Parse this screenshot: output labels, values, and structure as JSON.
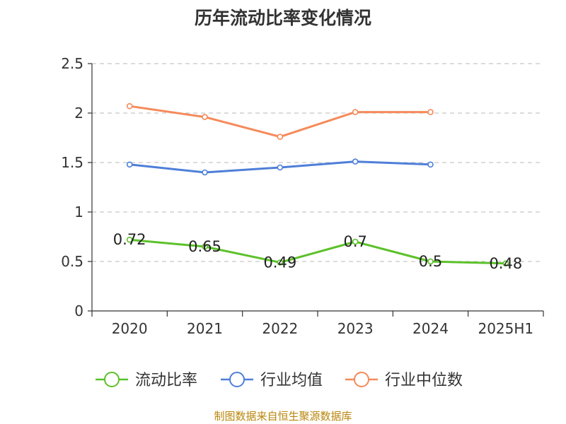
{
  "chart_data": {
    "type": "line",
    "title": "历年流动比率变化情况",
    "categories": [
      "2020",
      "2021",
      "2022",
      "2023",
      "2024",
      "2025H1"
    ],
    "ylim": [
      0,
      2.5
    ],
    "yticks": [
      "0",
      "0.5",
      "1",
      "1.5",
      "2",
      "2.5"
    ],
    "grid": "horizontal-dashed",
    "legend_position": "bottom",
    "series": [
      {
        "name": "流动比率",
        "color": "#5cc12a",
        "values": [
          0.72,
          0.65,
          0.49,
          0.7,
          0.5,
          0.48
        ],
        "labels": [
          "0.72",
          "0.65",
          "0.49",
          "0.7",
          "0.5",
          "0.48"
        ]
      },
      {
        "name": "行业均值",
        "color": "#4e7fd9",
        "values": [
          1.48,
          1.4,
          1.45,
          1.51,
          1.48,
          null
        ]
      },
      {
        "name": "行业中位数",
        "color": "#f58a5a",
        "values": [
          2.07,
          1.96,
          1.76,
          2.01,
          2.01,
          null
        ]
      }
    ]
  },
  "source_note": "制图数据来自恒生聚源数据库"
}
